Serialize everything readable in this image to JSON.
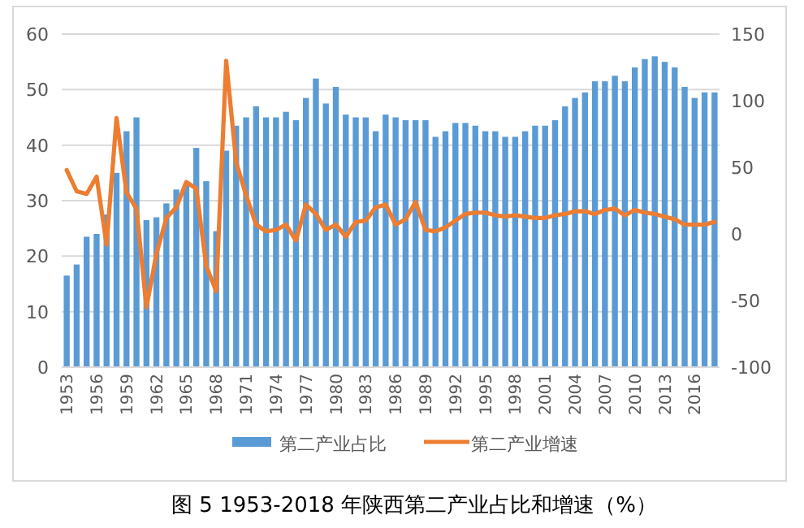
{
  "chart_data": {
    "type": "bar",
    "title": "图 5 1953-2018 年陕西第二产业占比和增速（%）",
    "categories": [
      "1953",
      null,
      null,
      "1956",
      null,
      null,
      "1959",
      null,
      null,
      "1962",
      null,
      null,
      "1965",
      null,
      null,
      "1968",
      null,
      null,
      "1971",
      null,
      null,
      "1974",
      null,
      null,
      "1977",
      null,
      null,
      "1980",
      null,
      null,
      "1983",
      null,
      null,
      "1986",
      null,
      null,
      "1989",
      null,
      null,
      "1992",
      null,
      null,
      "1995",
      null,
      null,
      "1998",
      null,
      null,
      "2001",
      null,
      null,
      "2004",
      null,
      null,
      "2007",
      null,
      null,
      "2010",
      null,
      null,
      "2013",
      null,
      null,
      "2016",
      null,
      null
    ],
    "series": [
      {
        "name": "第二产业占比",
        "color": "#5b9bd5",
        "values": [
          16.5,
          18.5,
          23.5,
          24,
          27.5,
          35,
          42.5,
          45,
          26.5,
          27,
          29.5,
          32,
          33,
          39.5,
          33.5,
          24.5,
          39,
          43.5,
          45,
          47,
          45,
          45,
          46,
          44.5,
          48.5,
          52,
          47.5,
          50.5,
          45.5,
          45,
          45,
          42.5,
          45.5,
          45,
          44.5,
          44.5,
          44.5,
          41.5,
          42.5,
          44,
          44,
          43.5,
          42.5,
          42.5,
          41.5,
          41.5,
          42.5,
          43.5,
          43.5,
          44.5,
          47,
          48.5,
          49.5,
          51.5,
          51.5,
          52.5,
          51.5,
          54,
          55.5,
          56,
          55,
          54,
          50.5,
          48.5,
          49.5,
          49.5
        ]
      },
      {
        "name": "第二产业增速",
        "type": "line",
        "axis": "y2",
        "color": "#ed7d31",
        "values": [
          48,
          32,
          30,
          43,
          -8,
          87,
          31,
          19,
          -55,
          -15,
          12,
          20,
          39,
          34,
          -24,
          -43,
          130,
          54,
          29,
          7,
          2,
          3,
          7,
          -5,
          22,
          15,
          3,
          7,
          -2,
          9,
          10,
          20,
          22,
          7,
          11,
          24,
          3,
          2,
          5,
          10,
          15,
          16,
          16,
          14,
          13,
          14,
          13,
          12,
          12,
          14,
          15,
          17,
          17,
          15,
          18,
          19,
          14,
          18,
          16,
          15,
          13,
          11,
          7,
          7,
          7,
          9
        ]
      }
    ],
    "ylim": [
      0,
      60
    ],
    "yticks": [
      0,
      10,
      20,
      30,
      40,
      50,
      60
    ],
    "y2lim": [
      -100,
      150
    ],
    "y2ticks": [
      -100,
      -50,
      0,
      50,
      100,
      150
    ],
    "grid": "y",
    "legend": "bottom"
  }
}
